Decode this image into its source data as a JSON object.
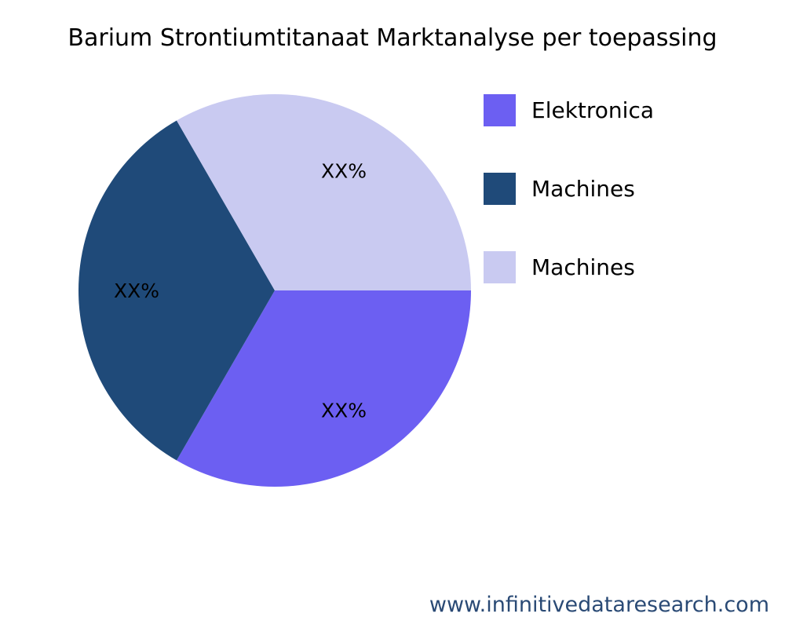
{
  "chart_data": {
    "type": "pie",
    "title": "Barium Strontiumtitanaat Marktanalyse per toepassing",
    "categories": [
      "Elektronica",
      "Machines",
      "Machines"
    ],
    "values": [
      33.33,
      33.33,
      33.33
    ],
    "data_labels": [
      "XX%",
      "XX%",
      "XX%"
    ],
    "colors": [
      "#6c5ff2",
      "#1f4a79",
      "#c9caf1"
    ],
    "legend_position": "right"
  },
  "footer": "www.infinitivedataresearch.com"
}
